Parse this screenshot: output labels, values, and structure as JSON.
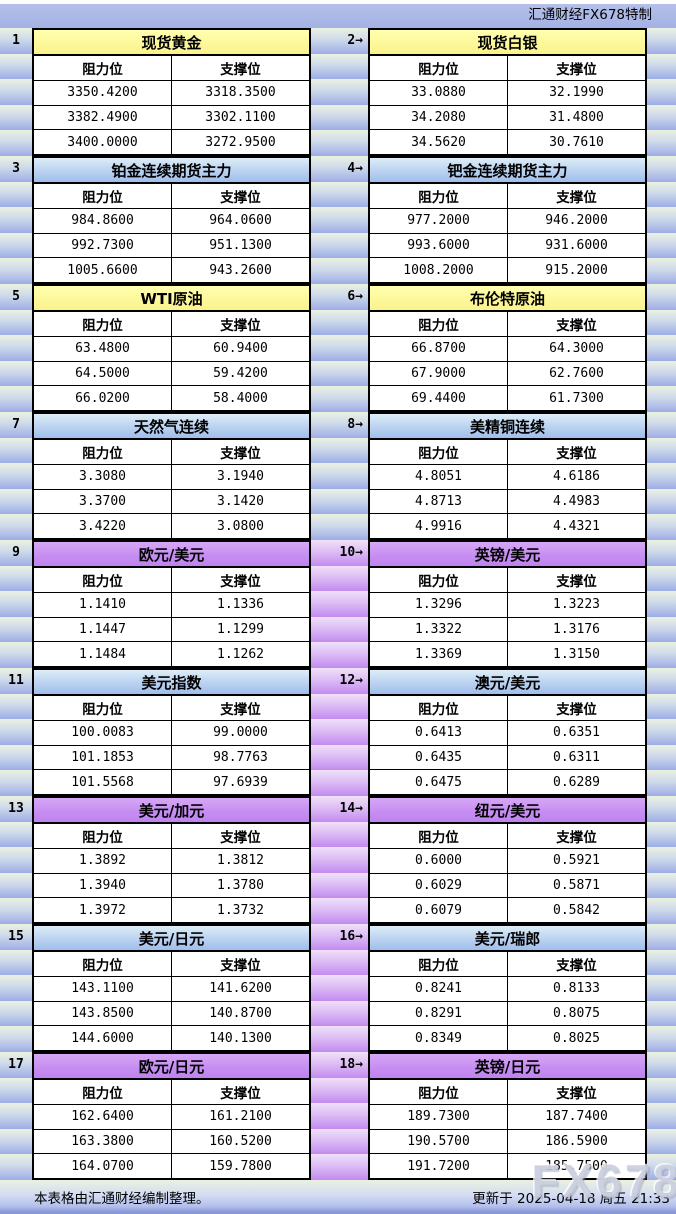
{
  "page": {
    "brand_top": "汇通财经FX678特制",
    "footer_left": "本表格由汇通财经编制整理。",
    "footer_right": "更新于 2025-04-18 周五 21:33",
    "watermark": "FX678"
  },
  "labels": {
    "resistance": "阻力位",
    "support": "支撑位"
  },
  "colors": {
    "theme_yellow": "#FAF28C",
    "theme_blue": "#9FBEEC",
    "theme_purple": "#C48CF0",
    "band_blue_bottom": "#9DADE6",
    "band_purple_bottom": "#C28BEF",
    "topbar_blue": "#A9B6E6",
    "footer_bottom_blue": "#8695D6",
    "cell_background": "#FFFFFF",
    "border": "#000000",
    "watermark_gray": "#C7CBDC"
  },
  "sections": [
    {
      "theme": "yellow",
      "gutter": "blue",
      "left": {
        "num": "1",
        "title": "现货黄金",
        "rows": [
          [
            "3350.4200",
            "3318.3500"
          ],
          [
            "3382.4900",
            "3302.1100"
          ],
          [
            "3400.0000",
            "3272.9500"
          ]
        ]
      },
      "right": {
        "num": "2→",
        "title": "现货白银",
        "rows": [
          [
            "33.0880",
            "32.1990"
          ],
          [
            "34.2080",
            "31.4800"
          ],
          [
            "34.5620",
            "30.7610"
          ]
        ]
      }
    },
    {
      "theme": "blue",
      "gutter": "blue",
      "left": {
        "num": "3",
        "title": "铂金连续期货主力",
        "rows": [
          [
            "984.8600",
            "964.0600"
          ],
          [
            "992.7300",
            "951.1300"
          ],
          [
            "1005.6600",
            "943.2600"
          ]
        ]
      },
      "right": {
        "num": "4→",
        "title": "钯金连续期货主力",
        "rows": [
          [
            "977.2000",
            "946.2000"
          ],
          [
            "993.6000",
            "931.6000"
          ],
          [
            "1008.2000",
            "915.2000"
          ]
        ]
      }
    },
    {
      "theme": "yellow",
      "gutter": "blue",
      "left": {
        "num": "5",
        "title": "WTI原油",
        "rows": [
          [
            "63.4800",
            "60.9400"
          ],
          [
            "64.5000",
            "59.4200"
          ],
          [
            "66.0200",
            "58.4000"
          ]
        ]
      },
      "right": {
        "num": "6→",
        "title": "布伦特原油",
        "rows": [
          [
            "66.8700",
            "64.3000"
          ],
          [
            "67.9000",
            "62.7600"
          ],
          [
            "69.4400",
            "61.7300"
          ]
        ]
      }
    },
    {
      "theme": "blue",
      "gutter": "blue",
      "left": {
        "num": "7",
        "title": "天然气连续",
        "rows": [
          [
            "3.3080",
            "3.1940"
          ],
          [
            "3.3700",
            "3.1420"
          ],
          [
            "3.4220",
            "3.0800"
          ]
        ]
      },
      "right": {
        "num": "8→",
        "title": "美精铜连续",
        "rows": [
          [
            "4.8051",
            "4.6186"
          ],
          [
            "4.8713",
            "4.4983"
          ],
          [
            "4.9916",
            "4.4321"
          ]
        ]
      }
    },
    {
      "theme": "purple",
      "gutter": "purple",
      "left": {
        "num": "9",
        "title": "欧元/美元",
        "rows": [
          [
            "1.1410",
            "1.1336"
          ],
          [
            "1.1447",
            "1.1299"
          ],
          [
            "1.1484",
            "1.1262"
          ]
        ]
      },
      "right": {
        "num": "10→",
        "title": "英镑/美元",
        "rows": [
          [
            "1.3296",
            "1.3223"
          ],
          [
            "1.3322",
            "1.3176"
          ],
          [
            "1.3369",
            "1.3150"
          ]
        ]
      }
    },
    {
      "theme": "blue",
      "gutter": "purple",
      "left": {
        "num": "11",
        "title": "美元指数",
        "rows": [
          [
            "100.0083",
            "99.0000"
          ],
          [
            "101.1853",
            "98.7763"
          ],
          [
            "101.5568",
            "97.6939"
          ]
        ]
      },
      "right": {
        "num": "12→",
        "title": "澳元/美元",
        "rows": [
          [
            "0.6413",
            "0.6351"
          ],
          [
            "0.6435",
            "0.6311"
          ],
          [
            "0.6475",
            "0.6289"
          ]
        ]
      }
    },
    {
      "theme": "purple",
      "gutter": "purple",
      "left": {
        "num": "13",
        "title": "美元/加元",
        "rows": [
          [
            "1.3892",
            "1.3812"
          ],
          [
            "1.3940",
            "1.3780"
          ],
          [
            "1.3972",
            "1.3732"
          ]
        ]
      },
      "right": {
        "num": "14→",
        "title": "纽元/美元",
        "rows": [
          [
            "0.6000",
            "0.5921"
          ],
          [
            "0.6029",
            "0.5871"
          ],
          [
            "0.6079",
            "0.5842"
          ]
        ]
      }
    },
    {
      "theme": "blue",
      "gutter": "purple",
      "left": {
        "num": "15",
        "title": "美元/日元",
        "rows": [
          [
            "143.1100",
            "141.6200"
          ],
          [
            "143.8500",
            "140.8700"
          ],
          [
            "144.6000",
            "140.1300"
          ]
        ]
      },
      "right": {
        "num": "16→",
        "title": "美元/瑞郎",
        "rows": [
          [
            "0.8241",
            "0.8133"
          ],
          [
            "0.8291",
            "0.8075"
          ],
          [
            "0.8349",
            "0.8025"
          ]
        ]
      }
    },
    {
      "theme": "purple",
      "gutter": "purple",
      "left": {
        "num": "17",
        "title": "欧元/日元",
        "rows": [
          [
            "162.6400",
            "161.2100"
          ],
          [
            "163.3800",
            "160.5200"
          ],
          [
            "164.0700",
            "159.7800"
          ]
        ]
      },
      "right": {
        "num": "18→",
        "title": "英镑/日元",
        "rows": [
          [
            "189.7300",
            "187.7400"
          ],
          [
            "190.5700",
            "186.5900"
          ],
          [
            "191.7200",
            "185.7500"
          ]
        ]
      }
    }
  ]
}
